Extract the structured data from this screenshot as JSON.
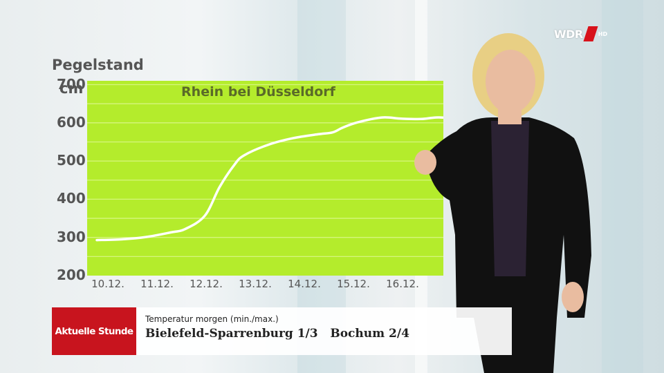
{
  "chart_data": {
    "type": "line",
    "title": "Rhein bei Düsseldorf",
    "ylabel": "Pegelstand",
    "yunit": "cm",
    "ylim": [
      200,
      710
    ],
    "xlim": [
      0,
      7.4
    ],
    "yticks": [
      200,
      300,
      400,
      500,
      600,
      700
    ],
    "xticks": [
      {
        "label": "10.12.",
        "pos": 0
      },
      {
        "label": "11.12.",
        "pos": 1
      },
      {
        "label": "12.12.",
        "pos": 2
      },
      {
        "label": "13.12.",
        "pos": 3
      },
      {
        "label": "14.12.",
        "pos": 4
      },
      {
        "label": "15.12.",
        "pos": 5
      },
      {
        "label": "16.12.",
        "pos": 6
      }
    ],
    "grid": true,
    "line_color": "#ffffff",
    "background_color": "#b4ec2c",
    "series": [
      {
        "x": [
          0,
          0.5,
          1.0,
          1.5,
          1.8,
          2.2,
          2.5,
          2.8,
          3.0,
          3.5,
          4.0,
          4.5,
          4.8,
          5.0,
          5.3,
          5.8,
          6.2,
          6.6,
          6.9,
          7.2,
          7.4
        ],
        "values": [
          293,
          295,
          301,
          313,
          322,
          357,
          432,
          490,
          515,
          543,
          560,
          570,
          575,
          587,
          601,
          614,
          611,
          610,
          614,
          613,
          612
        ]
      }
    ]
  },
  "channel": {
    "logo": "WDR",
    "hd": "HD"
  },
  "lower_third": {
    "program": "Aktuelle Stunde",
    "label": "Temperatur morgen (min./max.)",
    "value": "Bielefeld-Sparrenburg 1/3   Bochum 2/4"
  }
}
